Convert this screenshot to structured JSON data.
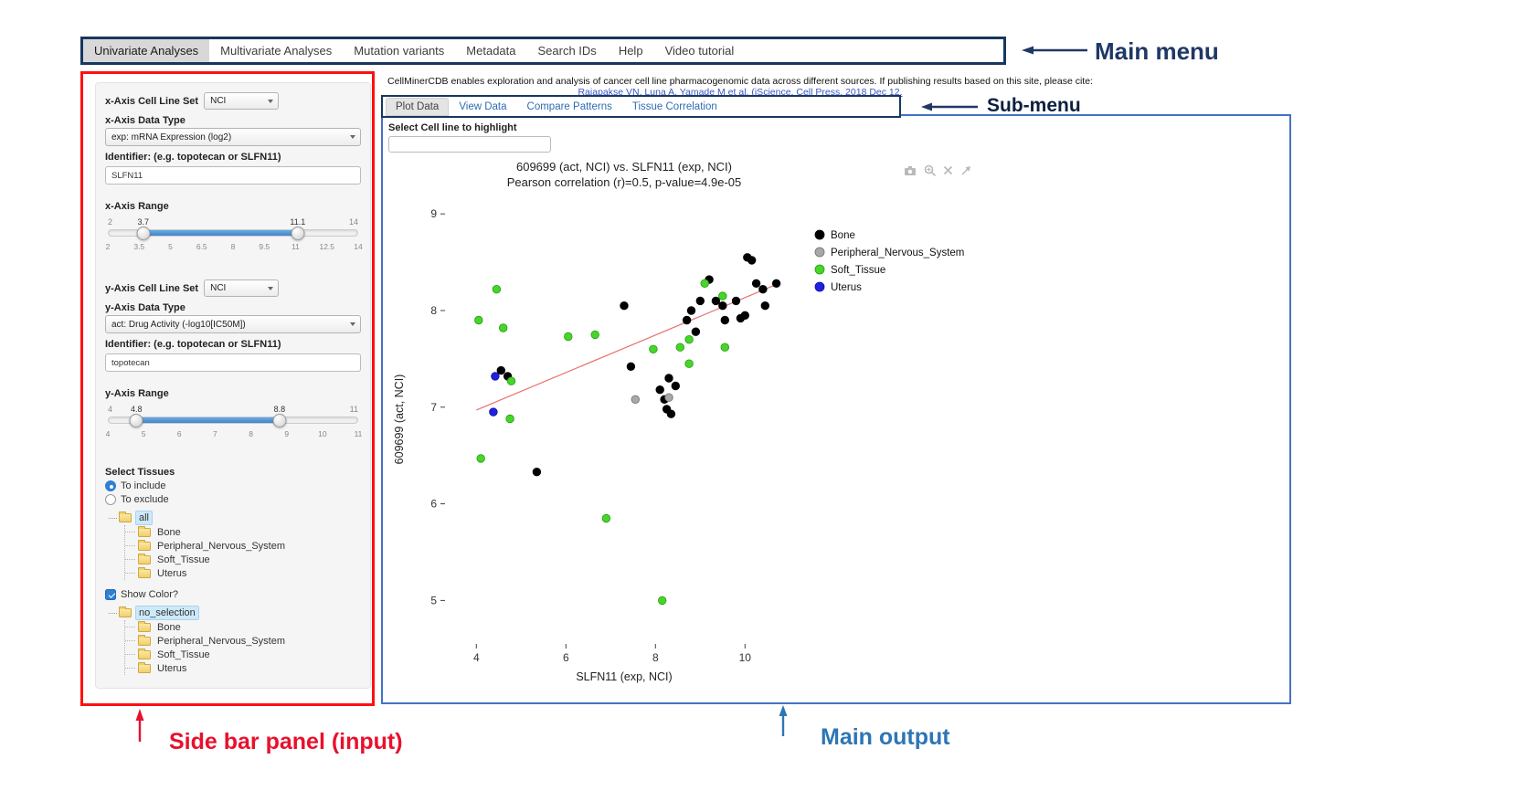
{
  "colors": {
    "menu-box": "#17375e",
    "sidebar-box": "#fe1010",
    "output-box": "#4472c4",
    "annotation-navy": "#1f3864",
    "annotation-red": "#e8112d",
    "annotation-blue": "#2e75b6",
    "link-blue": "#3a57c4",
    "tab-link": "#2f6db3",
    "slider-fill": "#3f87c9",
    "tree-highlight": "#cde9f9"
  },
  "annotations": {
    "main_menu": "Main menu",
    "sub_menu": "Sub-menu",
    "sidebar": "Side bar panel (input)",
    "main_output": "Main output"
  },
  "main_menu": {
    "items": [
      "Univariate Analyses",
      "Multivariate Analyses",
      "Mutation variants",
      "Metadata",
      "Search IDs",
      "Help",
      "Video tutorial"
    ],
    "active_item": "Univariate Analyses"
  },
  "header": {
    "description": "CellMinerCDB enables exploration and analysis of cancer cell line pharmacogenomic data across different sources. If publishing results based on this site, please cite:",
    "citation": "Rajapakse VN, Luna A, Yamade M et al. (iScience, Cell Press, 2018 Dec 12."
  },
  "sidebar": {
    "x_axis": {
      "set_label": "x-Axis Cell Line Set",
      "set_value": "NCI",
      "type_label": "x-Axis Data Type",
      "type_value": "exp: mRNA Expression (log2)",
      "id_label": "Identifier: (e.g. topotecan or SLFN11)",
      "id_value": "SLFN11",
      "range_label": "x-Axis Range"
    },
    "x_range": {
      "min": 2,
      "max": 14,
      "low": 3.7,
      "high": 11.1,
      "ticks": [
        "2",
        "3.5",
        "5",
        "6.5",
        "8",
        "9.5",
        "11",
        "12.5",
        "14"
      ]
    },
    "y_axis": {
      "set_label": "y-Axis Cell Line Set",
      "set_value": "NCI",
      "type_label": "y-Axis Data Type",
      "type_value": "act: Drug Activity (-log10[IC50M])",
      "id_label": "Identifier: (e.g. topotecan or SLFN11)",
      "id_value": "topotecan",
      "range_label": "y-Axis Range"
    },
    "y_range": {
      "min": 4,
      "max": 11,
      "low": 4.8,
      "high": 8.8,
      "ticks": [
        "4",
        "5",
        "6",
        "7",
        "8",
        "9",
        "10",
        "11"
      ]
    },
    "tissues": {
      "label": "Select Tissues",
      "include_option": "To include",
      "exclude_option": "To exclude",
      "selected_option": "To include",
      "include_tree": {
        "root": "all",
        "children": [
          "Bone",
          "Peripheral_Nervous_System",
          "Soft_Tissue",
          "Uterus"
        ]
      },
      "show_color_label": "Show Color?",
      "show_color_checked": true,
      "color_tree": {
        "root": "no_selection",
        "children": [
          "Bone",
          "Peripheral_Nervous_System",
          "Soft_Tissue",
          "Uterus"
        ]
      }
    }
  },
  "submenu": {
    "tabs": [
      "Plot Data",
      "View Data",
      "Compare Patterns",
      "Tissue Correlation"
    ],
    "active_tab": "Plot Data"
  },
  "main_output": {
    "highlight_label": "Select Cell line to highlight",
    "highlight_value": ""
  },
  "chart_data": {
    "type": "scatter",
    "title": "609699 (act, NCI) vs. SLFN11 (exp, NCI)",
    "subtitle": "Pearson correlation (r)=0.5, p-value=4.9e-05",
    "xlabel": "SLFN11 (exp, NCI)",
    "ylabel": "609699 (act, NCI)",
    "xlim": [
      3.3,
      11.3
    ],
    "ylim": [
      4.55,
      9.2
    ],
    "xticks": [
      4,
      6,
      8,
      10
    ],
    "yticks": [
      5,
      6,
      7,
      8,
      9
    ],
    "grid": false,
    "legend_position": "right",
    "trendline": {
      "x1": 4.0,
      "y1": 6.97,
      "x2": 10.7,
      "y2": 8.27,
      "color": "#e87070"
    },
    "series": [
      {
        "name": "Bone",
        "color": "#000000",
        "stroke": "#000000",
        "points": [
          [
            4.55,
            7.38
          ],
          [
            4.7,
            7.32
          ],
          [
            5.35,
            6.33
          ],
          [
            7.3,
            8.05
          ],
          [
            7.45,
            7.42
          ],
          [
            8.1,
            7.18
          ],
          [
            8.2,
            7.08
          ],
          [
            8.25,
            6.98
          ],
          [
            8.3,
            7.3
          ],
          [
            8.45,
            7.22
          ],
          [
            8.35,
            6.93
          ],
          [
            8.7,
            7.9
          ],
          [
            8.8,
            8.0
          ],
          [
            8.9,
            7.78
          ],
          [
            9.0,
            8.1
          ],
          [
            9.2,
            8.32
          ],
          [
            9.35,
            8.1
          ],
          [
            9.5,
            8.05
          ],
          [
            9.55,
            7.9
          ],
          [
            9.8,
            8.1
          ],
          [
            9.9,
            7.92
          ],
          [
            10.0,
            7.95
          ],
          [
            10.05,
            8.55
          ],
          [
            10.15,
            8.52
          ],
          [
            10.25,
            8.28
          ],
          [
            10.4,
            8.22
          ],
          [
            10.7,
            8.28
          ],
          [
            10.45,
            8.05
          ]
        ]
      },
      {
        "name": "Peripheral_Nervous_System",
        "color": "#a8a8a8",
        "stroke": "#6e6e6e",
        "points": [
          [
            7.55,
            7.08
          ],
          [
            8.3,
            7.1
          ]
        ]
      },
      {
        "name": "Soft_Tissue",
        "color": "#45d62a",
        "stroke": "#2a9a12",
        "points": [
          [
            4.45,
            8.22
          ],
          [
            4.05,
            7.9
          ],
          [
            4.6,
            7.82
          ],
          [
            6.05,
            7.73
          ],
          [
            6.65,
            7.75
          ],
          [
            4.78,
            7.27
          ],
          [
            4.75,
            6.88
          ],
          [
            4.1,
            6.47
          ],
          [
            6.9,
            5.85
          ],
          [
            8.15,
            5.0
          ],
          [
            7.95,
            7.6
          ],
          [
            8.55,
            7.62
          ],
          [
            8.75,
            7.7
          ],
          [
            9.1,
            8.28
          ],
          [
            9.5,
            8.15
          ],
          [
            9.55,
            7.62
          ],
          [
            8.75,
            7.45
          ]
        ]
      },
      {
        "name": "Uterus",
        "color": "#2020dd",
        "stroke": "#0d0da8",
        "points": [
          [
            4.42,
            7.32
          ],
          [
            4.38,
            6.95
          ]
        ]
      }
    ],
    "modebar_icons": [
      "camera-icon",
      "zoom-icon",
      "close-icon",
      "expand-icon"
    ]
  }
}
